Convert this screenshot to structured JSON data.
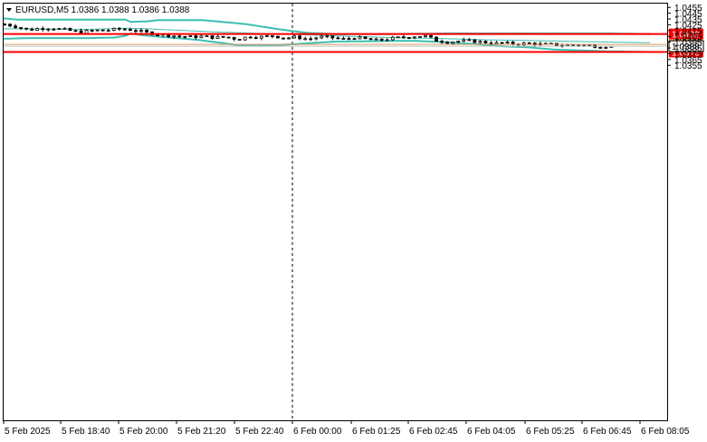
{
  "header": {
    "symbol_text": "EURUSD,M5  1.0386 1.0388 1.0386 1.0388",
    "menu_icon": "triangle-down-icon"
  },
  "chart_data": {
    "type": "candlestick",
    "symbol": "EURUSD",
    "timeframe": "M5",
    "ohlc_last": {
      "open": 1.0386,
      "high": 1.0388,
      "low": 1.0386,
      "close": 1.0388
    },
    "ylim": [
      1.035,
      1.0462
    ],
    "y_ticks": [
      "1.0455",
      "1.0445",
      "1.0435",
      "1.0425",
      "1.0415",
      "1.0405",
      "1.0395",
      "1.0385",
      "1.0375",
      "1.0365",
      "1.0355"
    ],
    "x_ticks": [
      "5 Feb 2025",
      "5 Feb 18:40",
      "5 Feb 20:00",
      "5 Feb 21:20",
      "5 Feb 22:40",
      "6 Feb 00:00",
      "6 Feb 01:25",
      "6 Feb 02:45",
      "6 Feb 04:05",
      "6 Feb 05:25",
      "6 Feb 06:45",
      "6 Feb 08:05"
    ],
    "candle_count": 112,
    "horizontal_levels": [
      {
        "value": 1.0409,
        "label": "1.0409",
        "color": "#ff0000"
      },
      {
        "value": 1.0378,
        "label": "1.0378",
        "color": "#ff0000"
      },
      {
        "value": 1.0391,
        "label": "1.0391",
        "color": "#d89a60"
      }
    ],
    "current_price": {
      "value": 1.0388,
      "label": "1.0388"
    },
    "session_separator_tick": "6 Feb 00:00",
    "indicators": [
      {
        "type": "bollinger_upper",
        "color": "#3cbfb0",
        "anchors": [
          [
            0,
            1.0436
          ],
          [
            5,
            1.0434
          ],
          [
            30,
            1.0434
          ],
          [
            40,
            1.0434
          ],
          [
            44,
            1.0434
          ],
          [
            46,
            1.043
          ],
          [
            52,
            1.0431
          ],
          [
            56,
            1.0433
          ],
          [
            65,
            1.0433
          ],
          [
            72,
            1.0433
          ],
          [
            77,
            1.0431
          ],
          [
            88,
            1.0426
          ],
          [
            100,
            1.0417
          ],
          [
            110,
            1.0411
          ],
          [
            120,
            1.0409
          ],
          [
            140,
            1.0409
          ],
          [
            160,
            1.041
          ],
          [
            175,
            1.041
          ],
          [
            200,
            1.041
          ],
          [
            220,
            1.041
          ],
          [
            234,
            1.0409
          ]
        ]
      },
      {
        "type": "bollinger_middle",
        "color": "#3cbfb0",
        "anchors": [
          [
            0,
            1.0418
          ],
          [
            10,
            1.0418
          ],
          [
            30,
            1.0417
          ],
          [
            44,
            1.0419
          ],
          [
            52,
            1.0418
          ],
          [
            66,
            1.0415
          ],
          [
            80,
            1.0412
          ],
          [
            100,
            1.0409
          ],
          [
            120,
            1.0406
          ],
          [
            140,
            1.0403
          ],
          [
            160,
            1.0401
          ],
          [
            175,
            1.0399
          ],
          [
            200,
            1.0397
          ],
          [
            220,
            1.0395
          ],
          [
            234,
            1.0394
          ]
        ]
      },
      {
        "type": "bollinger_lower",
        "color": "#3cbfb0",
        "anchors": [
          [
            0,
            1.0401
          ],
          [
            10,
            1.0402
          ],
          [
            30,
            1.0402
          ],
          [
            40,
            1.0403
          ],
          [
            44,
            1.0406
          ],
          [
            46,
            1.041
          ],
          [
            50,
            1.0407
          ],
          [
            60,
            1.0403
          ],
          [
            70,
            1.0399
          ],
          [
            80,
            1.0393
          ],
          [
            84,
            1.039
          ],
          [
            90,
            1.0389
          ],
          [
            100,
            1.039
          ],
          [
            110,
            1.0393
          ],
          [
            120,
            1.0396
          ],
          [
            140,
            1.0397
          ],
          [
            150,
            1.0397
          ],
          [
            160,
            1.0395
          ],
          [
            170,
            1.0392
          ],
          [
            180,
            1.0388
          ],
          [
            190,
            1.0386
          ],
          [
            200,
            1.0382
          ],
          [
            220,
            1.0379
          ],
          [
            234,
            1.0378
          ]
        ]
      }
    ],
    "close_path": [
      [
        0,
        1.0426
      ],
      [
        4,
        1.0422
      ],
      [
        8,
        1.0416
      ],
      [
        14,
        1.042
      ],
      [
        20,
        1.0417
      ],
      [
        26,
        1.0412
      ],
      [
        30,
        1.0415
      ],
      [
        36,
        1.0416
      ],
      [
        40,
        1.0418
      ],
      [
        44,
        1.0416
      ],
      [
        48,
        1.0412
      ],
      [
        52,
        1.0409
      ],
      [
        56,
        1.0407
      ],
      [
        60,
        1.0405
      ],
      [
        64,
        1.0404
      ],
      [
        68,
        1.0405
      ],
      [
        72,
        1.0403
      ],
      [
        76,
        1.0404
      ],
      [
        80,
        1.04
      ],
      [
        84,
        1.0405
      ],
      [
        88,
        1.0404
      ],
      [
        92,
        1.0406
      ],
      [
        96,
        1.0402
      ],
      [
        100,
        1.0404
      ],
      [
        104,
        1.04
      ],
      [
        108,
        1.0404
      ],
      [
        112,
        1.0403
      ],
      [
        116,
        1.04
      ],
      [
        120,
        1.0403
      ],
      [
        124,
        1.04
      ],
      [
        128,
        1.0398
      ],
      [
        132,
        1.0401
      ],
      [
        136,
        1.0403
      ],
      [
        140,
        1.0405
      ],
      [
        144,
        1.0406
      ],
      [
        148,
        1.0398
      ],
      [
        152,
        1.0395
      ],
      [
        156,
        1.0397
      ],
      [
        160,
        1.0397
      ],
      [
        164,
        1.0395
      ],
      [
        168,
        1.0393
      ],
      [
        172,
        1.0393
      ],
      [
        176,
        1.0392
      ],
      [
        180,
        1.0393
      ],
      [
        184,
        1.0391
      ],
      [
        188,
        1.0391
      ],
      [
        192,
        1.0389
      ],
      [
        196,
        1.039
      ],
      [
        200,
        1.0389
      ],
      [
        204,
        1.0388
      ],
      [
        208,
        1.0388
      ]
    ]
  }
}
